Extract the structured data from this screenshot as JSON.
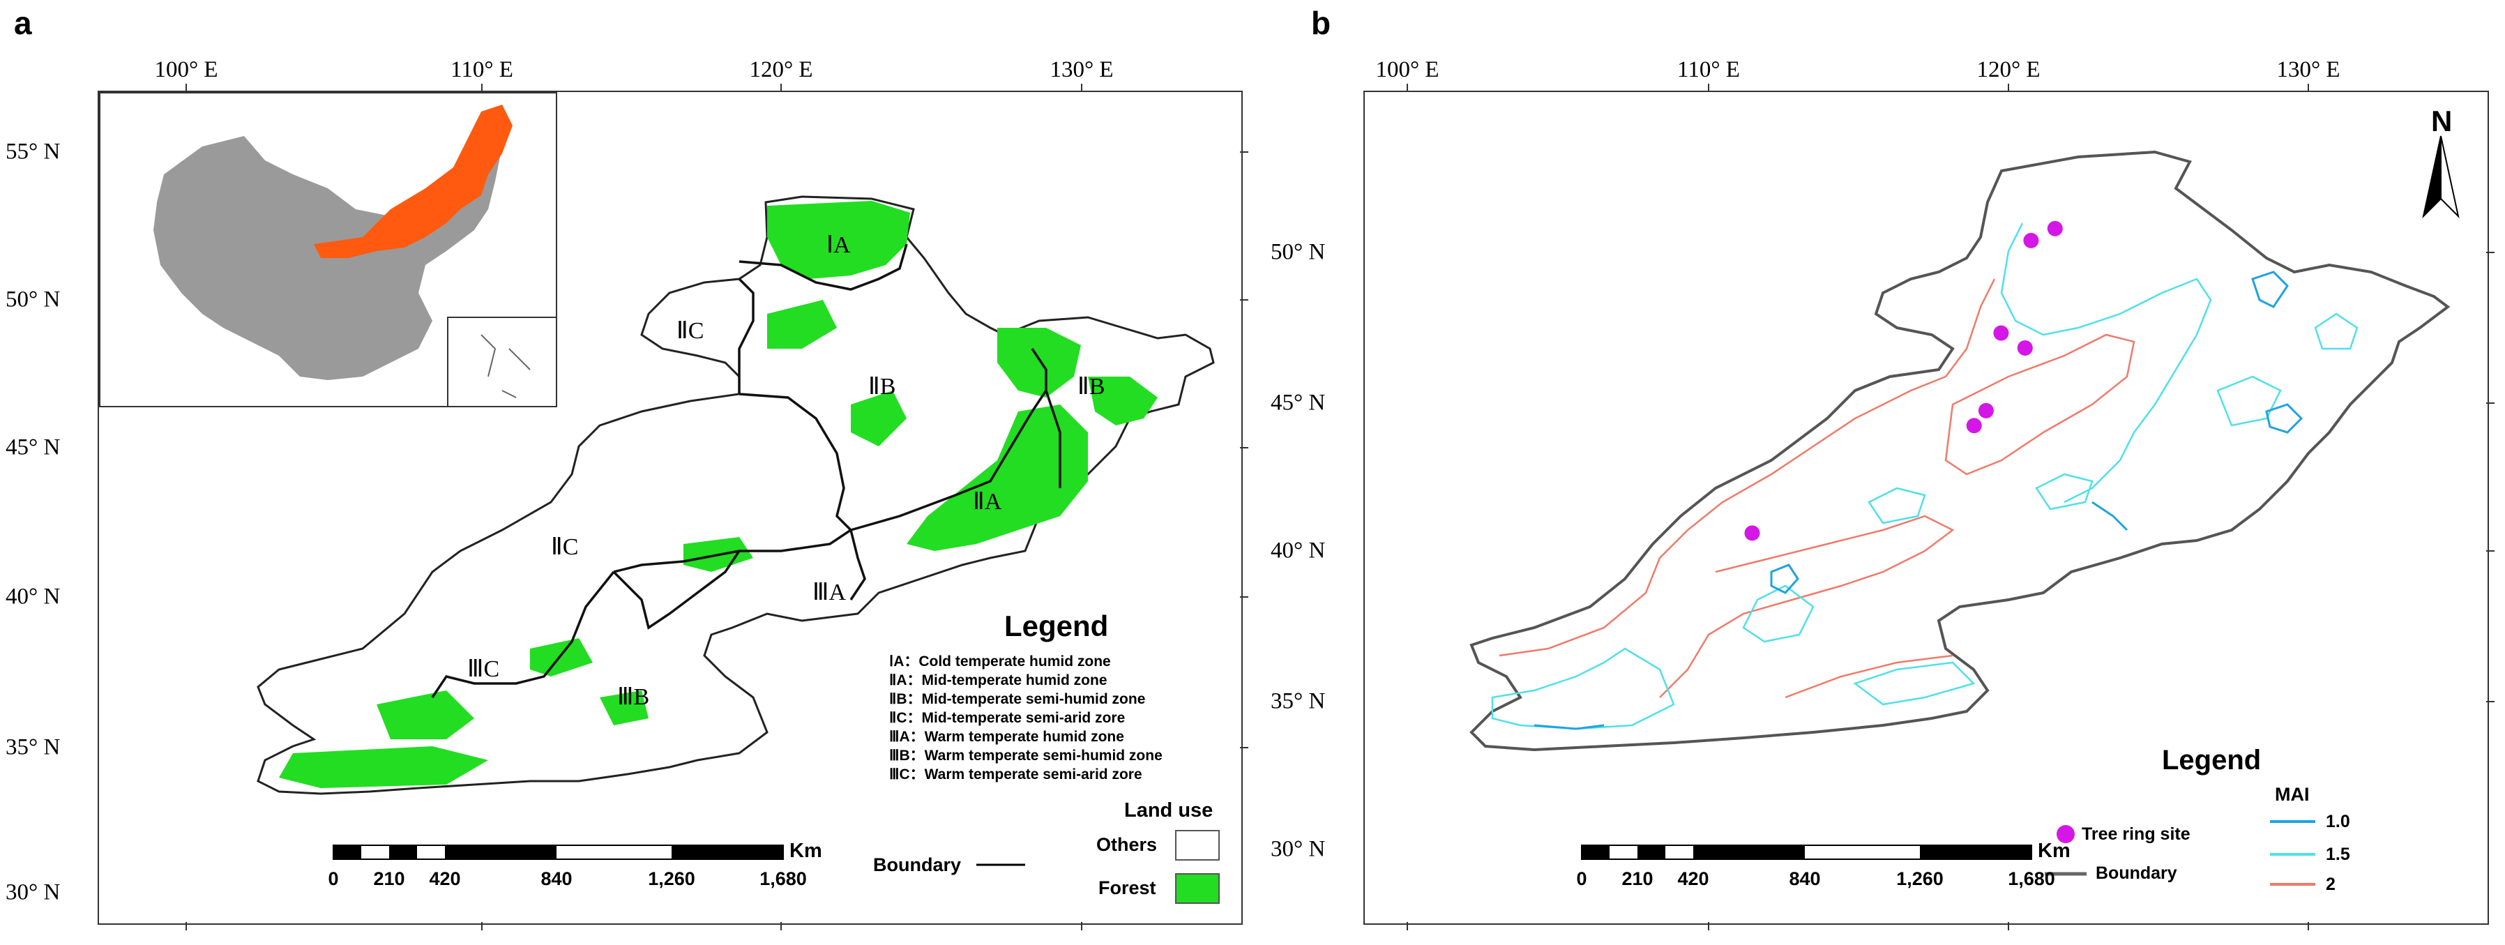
{
  "panels": {
    "a": {
      "letter": "a",
      "lon_labels": [
        "100° E",
        "110° E",
        "120° E",
        "130° E"
      ],
      "lat_labels": [
        "55° N",
        "50° N",
        "45° N",
        "40° N",
        "35° N",
        "30° N"
      ],
      "zone_labels": [
        "ⅠA",
        "ⅡC",
        "ⅡB",
        "ⅡB",
        "ⅡA",
        "ⅡC",
        "ⅢA",
        "ⅢC",
        "ⅢB"
      ],
      "legend": {
        "title": "Legend",
        "items": [
          "ⅠA：Cold temperate humid zone",
          "ⅡA：Mid-temperate humid zone",
          "ⅡB：Mid-temperate semi-humid zone",
          "ⅡC：Mid-temperate semi-arid zore",
          "ⅢA：Warm temperate humid zone",
          "ⅢB：Warm temperate semi-humid zone",
          "ⅢC：Warm temperate semi-arid zore"
        ],
        "land_use_title": "Land use",
        "others_label": "Others",
        "forest_label": "Forest",
        "boundary_label": "Boundary",
        "forest_color": "#22dd22",
        "others_color": "#ffffff"
      },
      "scale": {
        "unit": "Km",
        "ticks": [
          "0",
          "210",
          "420",
          "840",
          "1,260",
          "1,680"
        ]
      },
      "inset": {
        "highlight_color": "#ff5a0f",
        "base_color": "#9a9a9a"
      }
    },
    "b": {
      "letter": "b",
      "lon_labels": [
        "100° E",
        "110° E",
        "120° E",
        "130° E"
      ],
      "lat_labels": [
        "50° N",
        "45° N",
        "40° N",
        "35° N",
        "30° N"
      ],
      "north_label": "N",
      "legend": {
        "title": "Legend",
        "site_label": "Tree ring site",
        "boundary_label": "Boundary",
        "mai_title": "MAI",
        "mai_levels": [
          {
            "label": "1.0",
            "color": "#1fa3e0"
          },
          {
            "label": "1.5",
            "color": "#4fe0e8"
          },
          {
            "label": "2",
            "color": "#f07a6a"
          }
        ],
        "site_color": "#d417e6",
        "boundary_color": "#666666"
      },
      "scale": {
        "unit": "Km",
        "ticks": [
          "0",
          "210",
          "420",
          "840",
          "1,260",
          "1,680"
        ]
      },
      "tree_ring_sites": [
        {
          "lon": 120.8,
          "lat": 50.4
        },
        {
          "lon": 121.6,
          "lat": 50.8
        },
        {
          "lon": 119.8,
          "lat": 47.3
        },
        {
          "lon": 120.6,
          "lat": 46.8
        },
        {
          "lon": 119.3,
          "lat": 44.7
        },
        {
          "lon": 118.9,
          "lat": 44.2
        },
        {
          "lon": 111.5,
          "lat": 40.6
        }
      ]
    }
  }
}
